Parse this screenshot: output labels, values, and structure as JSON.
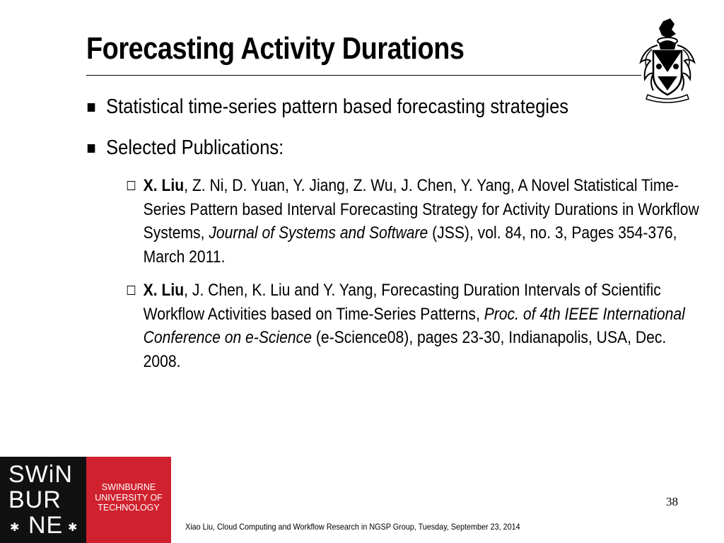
{
  "slide": {
    "title": "Forecasting Activity Durations",
    "bullets": [
      "Statistical time-series pattern based forecasting strategies",
      "Selected Publications:"
    ],
    "publications": [
      {
        "authors_bold": "X. Liu",
        "text_before": ", Z. Ni, D. Yuan, Y. Jiang, Z. Wu, J. Chen, Y. Yang, A Novel Statistical Time-Series Pattern based Interval Forecasting Strategy for Activity Durations in Workflow Systems, ",
        "venue_italic": "Journal of Systems and Software",
        "text_after": " (JSS), vol. 84, no. 3, Pages 354-376, March 2011."
      },
      {
        "authors_bold": "X. Liu",
        "text_before": ", J. Chen, K. Liu and Y. Yang, Forecasting Duration Intervals of Scientific Workflow Activities based on Time-Series Patterns, ",
        "venue_italic": "Proc. of 4th IEEE International Conference on e-Science",
        "text_after": " (e-Science08), pages 23-30, Indianapolis, USA, Dec. 2008."
      }
    ],
    "page_number": "38",
    "footer": "Xiao Liu, Cloud Computing and Workflow Research in NGSP Group, Tuesday, September 23, 2014"
  },
  "logo": {
    "mark_line1": "SWiNBUR",
    "mark_top": "SWiN",
    "mark_mid": "BUR",
    "mark_bot": "NE",
    "star": "✱",
    "name_line1": "SWINBURNE",
    "name_line2": "UNIVERSITY OF",
    "name_line3": "TECHNOLOGY",
    "black": "#111111",
    "red": "#d0212e"
  },
  "icons": {
    "crest": "university-crest-icon",
    "bullet_filled": "filled-square-bullet-icon",
    "bullet_hollow": "hollow-square-bullet-icon"
  }
}
